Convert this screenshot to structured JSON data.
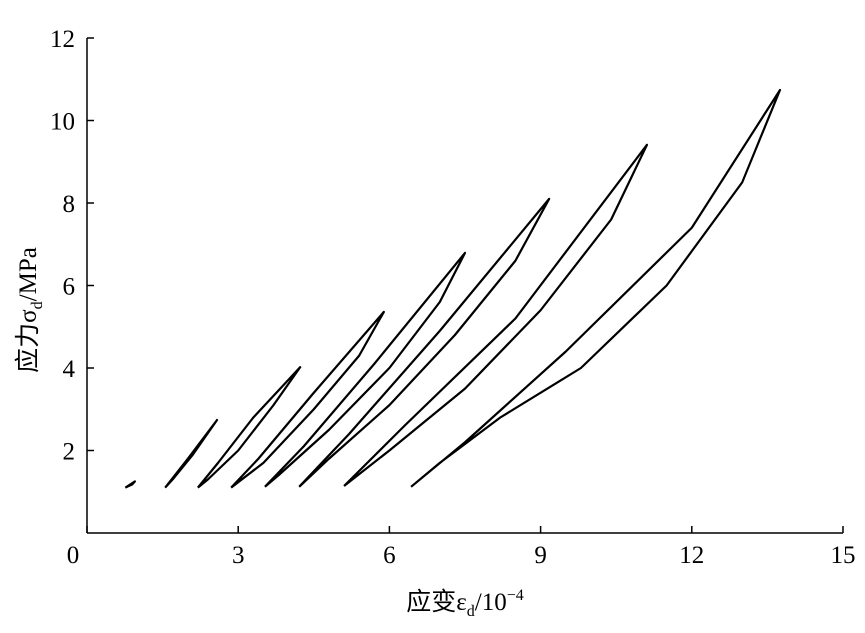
{
  "chart_data": {
    "type": "line",
    "xlabel": [
      "应变ε",
      "d",
      "/10",
      "−4"
    ],
    "ylabel": [
      "应力σ",
      "d",
      "/MPa"
    ],
    "xlim": [
      0,
      15
    ],
    "xticks": [
      0,
      3,
      6,
      9,
      12,
      15
    ],
    "ylim": [
      0,
      12
    ],
    "yticks": [
      2,
      4,
      6,
      8,
      10,
      12
    ],
    "color": "#000000",
    "series": [
      {
        "x": [
          0.76,
          0.95,
          0.9,
          0.76
        ],
        "values": [
          1.1,
          1.25,
          1.18,
          1.1
        ]
      },
      {
        "x": [
          1.55,
          2.0,
          2.58,
          2.1,
          1.7,
          1.55
        ],
        "values": [
          1.1,
          1.8,
          2.74,
          1.9,
          1.3,
          1.1
        ]
      },
      {
        "x": [
          2.2,
          2.6,
          3.3,
          4.23,
          3.7,
          3.0,
          2.4,
          2.2
        ],
        "values": [
          1.1,
          1.7,
          2.8,
          4.02,
          3.1,
          2.0,
          1.3,
          1.1
        ]
      },
      {
        "x": [
          2.86,
          3.4,
          4.5,
          5.89,
          5.4,
          4.5,
          3.5,
          2.86
        ],
        "values": [
          1.1,
          1.8,
          3.4,
          5.36,
          4.3,
          3.0,
          1.7,
          1.1
        ]
      },
      {
        "x": [
          3.53,
          4.3,
          5.7,
          7.5,
          7.0,
          6.0,
          4.8,
          3.8,
          3.53
        ],
        "values": [
          1.12,
          2.1,
          4.1,
          6.79,
          5.6,
          4.0,
          2.5,
          1.4,
          1.12
        ]
      },
      {
        "x": [
          4.21,
          5.2,
          7.0,
          9.17,
          8.5,
          7.3,
          6.0,
          4.8,
          4.21
        ],
        "values": [
          1.12,
          2.4,
          4.9,
          8.1,
          6.6,
          4.8,
          3.1,
          1.8,
          1.12
        ]
      },
      {
        "x": [
          5.1,
          6.3,
          8.5,
          11.11,
          10.4,
          9.0,
          7.5,
          6.0,
          5.1
        ],
        "values": [
          1.14,
          2.6,
          5.2,
          9.41,
          7.6,
          5.4,
          3.5,
          2.0,
          1.14
        ]
      },
      {
        "x": [
          6.43,
          7.5,
          9.5,
          12.0,
          13.75,
          13.0,
          11.5,
          9.8,
          8.2,
          7.0,
          6.43
        ],
        "values": [
          1.12,
          2.2,
          4.4,
          7.4,
          10.74,
          8.5,
          6.0,
          4.0,
          2.8,
          1.7,
          1.12
        ]
      }
    ]
  }
}
